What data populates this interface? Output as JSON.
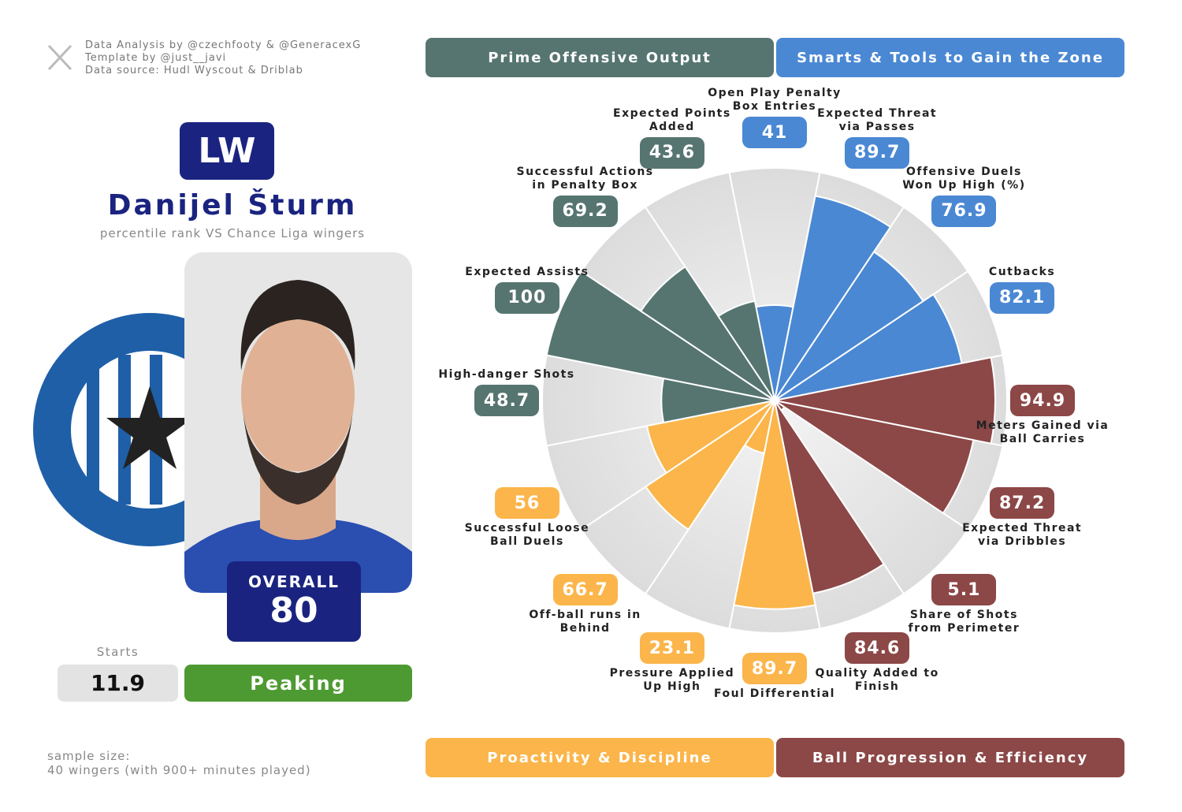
{
  "credits": [
    "Data Analysis by @czechfooty & @GeneracexG",
    "Template by @just__javi",
    "Data source: Hudl Wyscout & Driblab"
  ],
  "player": {
    "position": "LW",
    "name": "Danijel Šturm",
    "subtitle": "percentile rank VS Chance Liga wingers",
    "overall_label": "OVERALL",
    "overall": 80,
    "starts_label": "Starts",
    "starts": 11.9,
    "status": "Peaking"
  },
  "sample": [
    "sample size:",
    "40 wingers (with 900+ minutes played)"
  ],
  "chart_data": {
    "type": "pizza",
    "ylim": [
      0,
      100
    ],
    "series": [
      {
        "name": "Smarts & Tools to Gain the Zone",
        "color": "#4a88d3",
        "categories": [
          "Open Play Penalty Box Entries",
          "Expected Threat via Passes",
          "Offensive Duels Won Up High (%)",
          "Cutbacks"
        ],
        "values": [
          41,
          89.7,
          76.9,
          82.1
        ]
      },
      {
        "name": "Ball Progression & Efficiency",
        "color": "#8c4747",
        "categories": [
          "Meters Gained via Ball Carries",
          "Expected Threat via Dribbles",
          "Share of Shots from Perimeter",
          "Quality Added to Finish"
        ],
        "values": [
          94.9,
          87.2,
          5.1,
          84.6
        ]
      },
      {
        "name": "Proactivity & Discipline",
        "color": "#fbb54a",
        "categories": [
          "Foul Differential",
          "Pressure Applied Up High",
          "Off-ball runs in Behind",
          "Successful Loose Ball Duels"
        ],
        "values": [
          89.7,
          23.1,
          66.7,
          56
        ]
      },
      {
        "name": "Prime Offensive Output",
        "color": "#567570",
        "categories": [
          "High-danger Shots",
          "Expected Assists",
          "Successful Actions in Penalty Box",
          "Expected Points Added"
        ],
        "values": [
          48.7,
          100,
          69.2,
          43.6
        ]
      }
    ]
  }
}
